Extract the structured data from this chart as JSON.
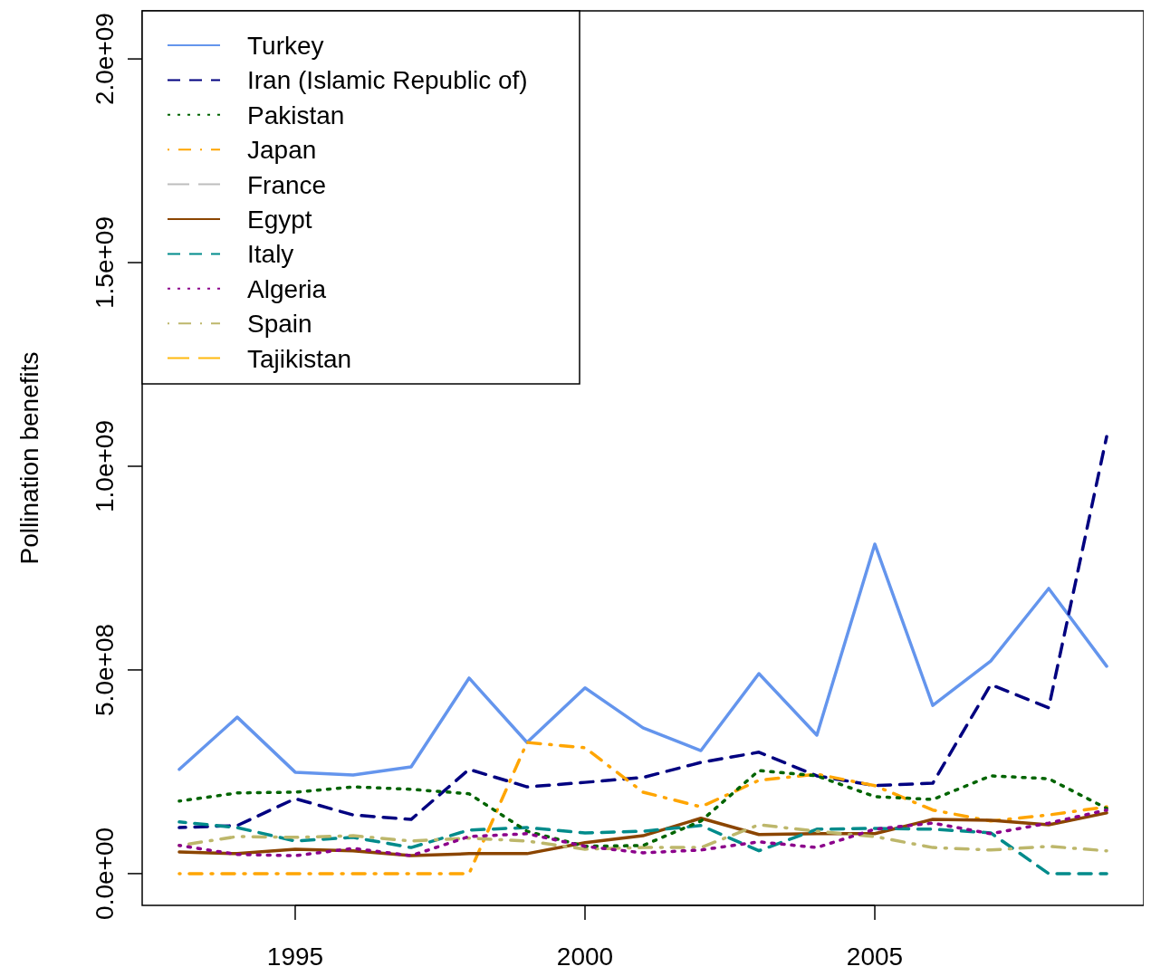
{
  "chart_data": {
    "type": "line",
    "ylabel": "Pollination benefits",
    "x": [
      1993,
      1994,
      1995,
      1996,
      1997,
      1998,
      1999,
      2000,
      2001,
      2002,
      2003,
      2004,
      2005,
      2006,
      2007,
      2008,
      2009
    ],
    "xlim": [
      1992.36,
      2009.64
    ],
    "xticks": [
      1995,
      2000,
      2005
    ],
    "ylim": [
      -78000000,
      2118000000
    ],
    "yticks": [
      {
        "value": 0,
        "label": "0.0e+00"
      },
      {
        "value": 500000000,
        "label": "5.0e+08"
      },
      {
        "value": 1000000000,
        "label": "1.0e+09"
      },
      {
        "value": 1500000000,
        "label": "1.5e+09"
      },
      {
        "value": 2000000000,
        "label": "2.0e+09"
      }
    ],
    "legend": "top left",
    "series": [
      {
        "name": "Turkey",
        "color": "#6495ed",
        "line_style": "solid",
        "values": [
          256000000,
          384000000,
          249000000,
          242000000,
          262000000,
          480000000,
          322000000,
          456000000,
          358000000,
          302000000,
          491000000,
          340000000,
          809000000,
          413000000,
          522000000,
          700000000,
          509000000
        ]
      },
      {
        "name": "Iran (Islamic Republic of)",
        "color": "#000080",
        "line_style": "dashed",
        "values": [
          113000000,
          118000000,
          184000000,
          144000000,
          133000000,
          256000000,
          213000000,
          224000000,
          236000000,
          273000000,
          298000000,
          240000000,
          216000000,
          222000000,
          464000000,
          407000000,
          1073000000
        ]
      },
      {
        "name": "Pakistan",
        "color": "#006400",
        "line_style": "dotted",
        "values": [
          178000000,
          198000000,
          200000000,
          213000000,
          207000000,
          196000000,
          104000000,
          67000000,
          69000000,
          129000000,
          253000000,
          240000000,
          189000000,
          182000000,
          240000000,
          233000000,
          160000000
        ]
      },
      {
        "name": "Japan",
        "color": "#ffa500",
        "line_style": "dashdot",
        "values": [
          0,
          0,
          0,
          0,
          0,
          0,
          322000000,
          309000000,
          200000000,
          164000000,
          229000000,
          244000000,
          216000000,
          156000000,
          129000000,
          144000000,
          164000000
        ]
      },
      {
        "name": "France",
        "color": "#bebebe",
        "line_style": "longdash",
        "values": [
          null,
          null,
          null,
          null,
          null,
          null,
          null,
          null,
          null,
          null,
          null,
          null,
          null,
          null,
          null,
          null,
          null
        ]
      },
      {
        "name": "Egypt",
        "color": "#8b4500",
        "line_style": "solid",
        "values": [
          53000000,
          49000000,
          60000000,
          56000000,
          44000000,
          49000000,
          49000000,
          76000000,
          93000000,
          136000000,
          96000000,
          98000000,
          98000000,
          133000000,
          131000000,
          120000000,
          149000000
        ]
      },
      {
        "name": "Italy",
        "color": "#008b8b",
        "line_style": "dashed",
        "values": [
          127000000,
          113000000,
          80000000,
          89000000,
          64000000,
          107000000,
          113000000,
          100000000,
          104000000,
          118000000,
          56000000,
          109000000,
          111000000,
          109000000,
          100000000,
          0,
          0
        ]
      },
      {
        "name": "Algeria",
        "color": "#8b008b",
        "line_style": "dotted",
        "values": [
          69000000,
          47000000,
          44000000,
          62000000,
          44000000,
          91000000,
          98000000,
          67000000,
          51000000,
          58000000,
          78000000,
          64000000,
          109000000,
          124000000,
          98000000,
          124000000,
          156000000
        ]
      },
      {
        "name": "Spain",
        "color": "#bdb76b",
        "line_style": "dashdot",
        "values": [
          69000000,
          91000000,
          89000000,
          93000000,
          80000000,
          87000000,
          80000000,
          60000000,
          64000000,
          64000000,
          120000000,
          104000000,
          91000000,
          64000000,
          58000000,
          67000000,
          56000000
        ]
      },
      {
        "name": "Tajikistan",
        "color": "#ffb90f",
        "line_style": "longdash",
        "values": [
          null,
          null,
          null,
          null,
          null,
          null,
          null,
          null,
          null,
          null,
          null,
          null,
          null,
          null,
          null,
          null,
          null
        ]
      }
    ]
  }
}
